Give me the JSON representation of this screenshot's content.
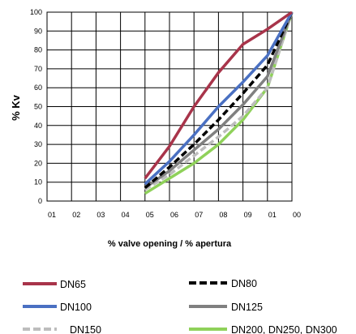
{
  "chart_data": {
    "type": "line",
    "title": "",
    "xlabel": "% valve opening / % apertura",
    "ylabel": "% Kv",
    "x_tick_labels": [
      "01",
      "02",
      "03",
      "04",
      "05",
      "06",
      "07",
      "08",
      "09",
      "01",
      "00"
    ],
    "y_tick_labels": [
      "0",
      "10",
      "20",
      "30",
      "40",
      "50",
      "60",
      "70",
      "80",
      "90",
      "100"
    ],
    "x": [
      10,
      20,
      30,
      40,
      50,
      60,
      70,
      80,
      90,
      100
    ],
    "ylim": [
      0,
      100
    ],
    "xlim": [
      0,
      100
    ],
    "grid": "horizontal and vertical",
    "legend_position": "bottom",
    "series": [
      {
        "name": "DN65",
        "color": "#a8344a",
        "style": "solid",
        "x": [
          40,
          50,
          60,
          70,
          80,
          90,
          100
        ],
        "values": [
          12,
          29,
          50,
          68,
          83,
          91,
          100
        ]
      },
      {
        "name": "DN80",
        "color": "#000000",
        "style": "dashed",
        "x": [
          40,
          50,
          60,
          70,
          80,
          90,
          100
        ],
        "values": [
          7,
          18,
          30,
          43,
          57,
          72,
          100
        ]
      },
      {
        "name": "DN100",
        "color": "#4a70c2",
        "style": "solid",
        "x": [
          40,
          50,
          60,
          70,
          80,
          90,
          100
        ],
        "values": [
          9,
          21,
          35,
          50,
          63,
          77,
          100
        ]
      },
      {
        "name": "DN125",
        "color": "#808080",
        "style": "solid",
        "x": [
          40,
          50,
          60,
          70,
          80,
          90,
          100
        ],
        "values": [
          7,
          16,
          27,
          38,
          51,
          66,
          100
        ]
      },
      {
        "name": "DN150",
        "color": "#bdbdbd",
        "style": "dashed",
        "x": [
          40,
          50,
          60,
          70,
          80,
          90,
          100
        ],
        "values": [
          6,
          14,
          24,
          34,
          45,
          60,
          100
        ]
      },
      {
        "name": "DN200, DN250, DN300",
        "color": "#8fd15a",
        "style": "solid",
        "x": [
          40,
          50,
          60,
          70,
          80,
          90,
          100
        ],
        "values": [
          4,
          12,
          20,
          30,
          43,
          60,
          100
        ]
      }
    ]
  },
  "legend": {
    "dn65": "DN65",
    "dn80": "DN80",
    "dn100": "DN100",
    "dn125": "DN125",
    "dn150": "DN150",
    "dn200": "DN200, DN250, DN300"
  }
}
